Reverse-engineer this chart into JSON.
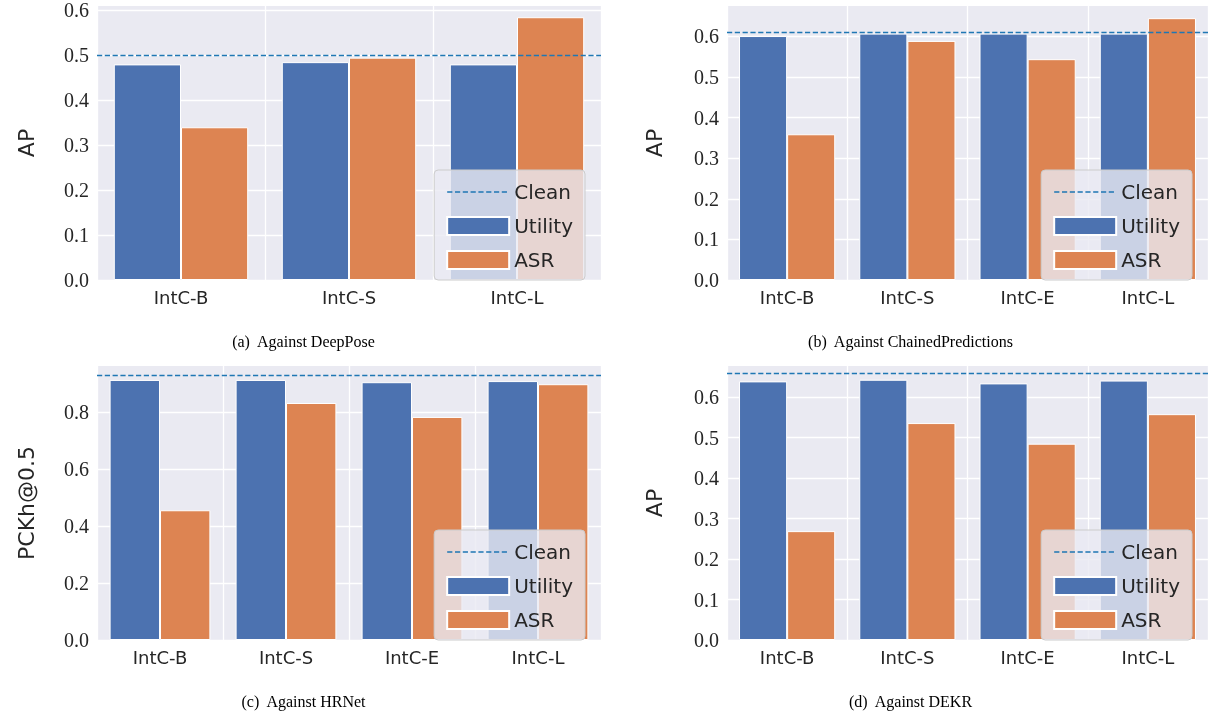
{
  "chart_data": [
    {
      "type": "bar",
      "title": "(a)  Against DeepPose",
      "ylabel": "AP",
      "categories": [
        "IntC-B",
        "IntC-S",
        "IntC-L"
      ],
      "series": [
        {
          "name": "Utility",
          "color": "#4c72b0",
          "values": [
            0.48,
            0.485,
            0.48
          ]
        },
        {
          "name": "ASR",
          "color": "#dd8452",
          "values": [
            0.34,
            0.495,
            0.585
          ]
        }
      ],
      "ref_lines": [
        {
          "axis": "y",
          "value": 0.5,
          "label": "Clean",
          "color": "#1f77b4",
          "line_style": "dashed"
        }
      ],
      "ylim": [
        0,
        0.61
      ],
      "yticks": [
        {
          "value": 0,
          "label": "0.0"
        },
        {
          "value": 0.1,
          "label": "0.1"
        },
        {
          "value": 0.2,
          "label": "0.2"
        },
        {
          "value": 0.3,
          "label": "0.3"
        },
        {
          "value": 0.4,
          "label": "0.4"
        },
        {
          "value": 0.5,
          "label": "0.5"
        },
        {
          "value": 0.6,
          "label": "0.6"
        }
      ],
      "grid": true,
      "legend": "bottom right"
    },
    {
      "type": "bar",
      "title": "(b)  Against ChainedPredictions",
      "ylabel": "AP",
      "categories": [
        "IntC-B",
        "IntC-S",
        "IntC-E",
        "IntC-L"
      ],
      "series": [
        {
          "name": "Utility",
          "color": "#4c72b0",
          "values": [
            0.601,
            0.607,
            0.607,
            0.607
          ]
        },
        {
          "name": "ASR",
          "color": "#dd8452",
          "values": [
            0.359,
            0.589,
            0.544,
            0.645
          ]
        }
      ],
      "ref_lines": [
        {
          "axis": "y",
          "value": 0.61,
          "label": "Clean",
          "color": "#1f77b4",
          "line_style": "dashed"
        }
      ],
      "ylim": [
        0,
        0.675
      ],
      "yticks": [
        {
          "value": 0,
          "label": "0.0"
        },
        {
          "value": 0.1,
          "label": "0.1"
        },
        {
          "value": 0.2,
          "label": "0.2"
        },
        {
          "value": 0.3,
          "label": "0.3"
        },
        {
          "value": 0.4,
          "label": "0.4"
        },
        {
          "value": 0.5,
          "label": "0.5"
        },
        {
          "value": 0.6,
          "label": "0.6"
        }
      ],
      "grid": true,
      "legend": "bottom right"
    },
    {
      "type": "bar",
      "title": "(c)  Against HRNet",
      "ylabel": "PCKh@0.5",
      "categories": [
        "IntC-B",
        "IntC-S",
        "IntC-E",
        "IntC-L"
      ],
      "series": [
        {
          "name": "Utility",
          "color": "#4c72b0",
          "values": [
            0.914,
            0.914,
            0.906,
            0.91
          ]
        },
        {
          "name": "ASR",
          "color": "#dd8452",
          "values": [
            0.456,
            0.833,
            0.784,
            0.899
          ]
        }
      ],
      "ref_lines": [
        {
          "axis": "y",
          "value": 0.926,
          "label": "Clean",
          "color": "#1f77b4",
          "line_style": "dashed"
        }
      ],
      "ylim": [
        0,
        0.963
      ],
      "yticks": [
        {
          "value": 0,
          "label": "0.0"
        },
        {
          "value": 0.2,
          "label": "0.2"
        },
        {
          "value": 0.4,
          "label": "0.4"
        },
        {
          "value": 0.6,
          "label": "0.6"
        },
        {
          "value": 0.8,
          "label": "0.8"
        }
      ],
      "grid": true,
      "legend": "bottom right"
    },
    {
      "type": "bar",
      "title": "(d)  Against DEKR",
      "ylabel": "AP",
      "categories": [
        "IntC-B",
        "IntC-S",
        "IntC-E",
        "IntC-L"
      ],
      "series": [
        {
          "name": "Utility",
          "color": "#4c72b0",
          "values": [
            0.639,
            0.643,
            0.634,
            0.641
          ]
        },
        {
          "name": "ASR",
          "color": "#dd8452",
          "values": [
            0.269,
            0.536,
            0.485,
            0.558
          ]
        }
      ],
      "ref_lines": [
        {
          "axis": "y",
          "value": 0.657,
          "label": "Clean",
          "color": "#1f77b4",
          "line_style": "dashed"
        }
      ],
      "ylim": [
        0,
        0.677
      ],
      "yticks": [
        {
          "value": 0,
          "label": "0.0"
        },
        {
          "value": 0.1,
          "label": "0.1"
        },
        {
          "value": 0.2,
          "label": "0.2"
        },
        {
          "value": 0.3,
          "label": "0.3"
        },
        {
          "value": 0.4,
          "label": "0.4"
        },
        {
          "value": 0.5,
          "label": "0.5"
        },
        {
          "value": 0.6,
          "label": "0.6"
        }
      ],
      "grid": true,
      "legend": "bottom right"
    }
  ]
}
